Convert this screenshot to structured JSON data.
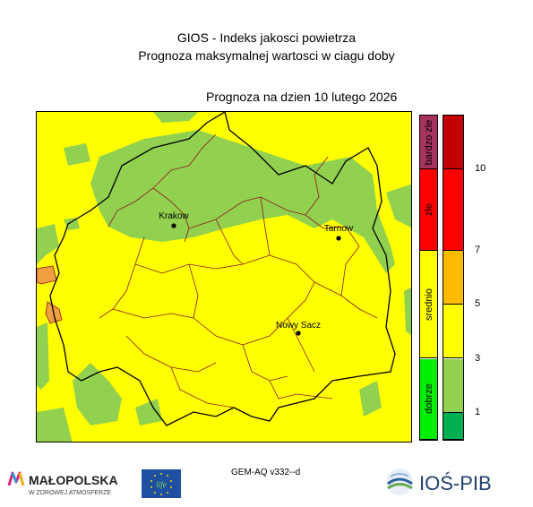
{
  "header": {
    "title": "GIOS - Indeks jakosci powietrza",
    "subtitle": "Prognoza maksymalnej wartosci w ciagu doby",
    "date_label": "Prognoza na dzien  10 lutego 2026"
  },
  "legend": {
    "categories": [
      {
        "label": "bardzo zle",
        "color": "#a8325e",
        "from": 10,
        "to": 12
      },
      {
        "label": "zle",
        "color": "#ff0000",
        "from": 7,
        "to": 10
      },
      {
        "label": "srednio",
        "color": "#ffff00",
        "from": 3,
        "to": 7
      },
      {
        "label": "dobrze",
        "color": "#00ee00",
        "from": 0,
        "to": 3
      }
    ],
    "scale_segments": [
      {
        "from": 10,
        "to": 12,
        "color": "#c00000"
      },
      {
        "from": 7,
        "to": 10,
        "color": "#ff0000"
      },
      {
        "from": 5,
        "to": 7,
        "color": "#ffbb00"
      },
      {
        "from": 3,
        "to": 5,
        "color": "#ffff00"
      },
      {
        "from": 1,
        "to": 3,
        "color": "#92d050"
      },
      {
        "from": 0,
        "to": 1,
        "color": "#00b050"
      }
    ],
    "ticks": [
      "1",
      "3",
      "5",
      "7",
      "10"
    ],
    "tick_values": [
      1,
      3,
      5,
      7,
      10
    ],
    "max": 12
  },
  "cities": [
    {
      "name": "Krakow"
    },
    {
      "name": "Tarnow"
    },
    {
      "name": "Nowy Sacz"
    }
  ],
  "model_label": "GEM-AQ v332--d",
  "logos": {
    "malopolska_top": "MAŁOPOLSKA",
    "malopolska_bottom": "W ZDROWEJ ATMOSFERZE",
    "eu_life": "life",
    "ios": "IOŚ-PIB"
  },
  "colors": {
    "good": "#92d050",
    "moderate": "#ffff00",
    "orange": "#f0a040",
    "border_region": "#000000",
    "border_county": "#8b1a1a"
  }
}
